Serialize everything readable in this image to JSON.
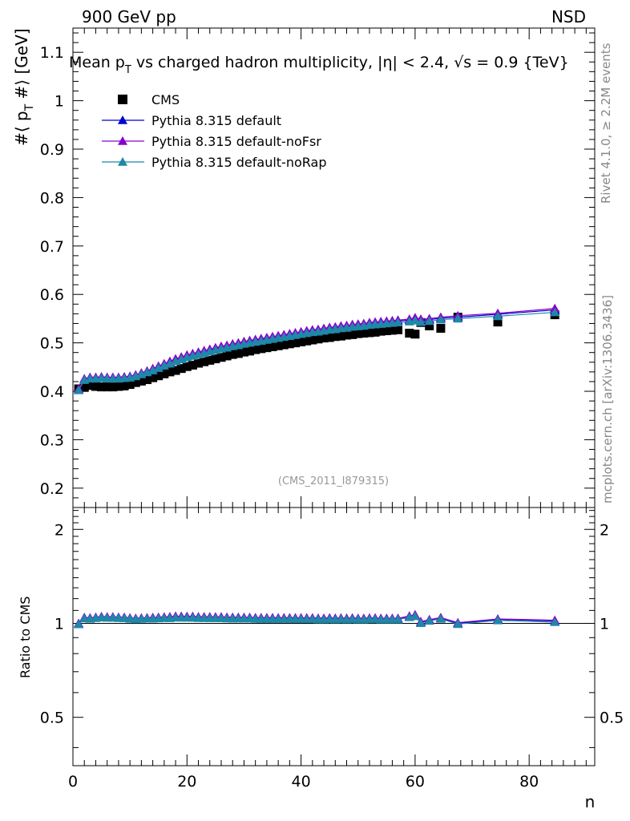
{
  "header": {
    "left": "900 GeV pp",
    "right": "NSD",
    "side_top": "Rivet 4.1.0, ≥ 2.2M events",
    "side_bottom": "mcplots.cern.ch [arXiv:1306.3436]",
    "analysis": "(CMS_2011_I879315)"
  },
  "chart_data": {
    "type": "scatter",
    "title": "Mean p_T vs charged hadron multiplicity, |η| < 2.4, √s = 0.9 {TeV}",
    "title_parts": {
      "a": "Mean p",
      "a_sub": "T",
      "b": " vs charged hadron multiplicity, ",
      "c": "η| < 2.4, ",
      "d": "s = 0.9 {TeV}"
    },
    "xlabel": "n",
    "ylabel": "#⟨ p_T #⟩ [GeV]",
    "ylabel_parts": {
      "a": "#⟨ p",
      "sub": "T",
      "b": " #⟩ [GeV]"
    },
    "ratio_ylabel": "Ratio to CMS",
    "xlim": [
      0,
      91.5
    ],
    "ylim": [
      0.16,
      1.15
    ],
    "ratio_ylim": [
      0.35,
      2.35
    ],
    "x_ticks": [
      0,
      20,
      40,
      60,
      80
    ],
    "x_tick_labels": [
      "0",
      "20",
      "40",
      "60",
      "80"
    ],
    "y_ticks": [
      0.2,
      0.3,
      0.4,
      0.5,
      0.6,
      0.7,
      0.8,
      0.9,
      1.0,
      1.1
    ],
    "y_tick_labels": [
      "0.2",
      "0.3",
      "0.4",
      "0.5",
      "0.6",
      "0.7",
      "0.8",
      "0.9",
      "1",
      "1.1"
    ],
    "ratio_ticks": [
      0.5,
      1,
      2
    ],
    "ratio_tick_labels": [
      "0.5",
      "1",
      "2"
    ],
    "legend_position": "top-left",
    "x": [
      1,
      2,
      3,
      4,
      5,
      6,
      7,
      8,
      9,
      10,
      11,
      12,
      13,
      14,
      15,
      16,
      17,
      18,
      19,
      20,
      21,
      22,
      23,
      24,
      25,
      26,
      27,
      28,
      29,
      30,
      31,
      32,
      33,
      34,
      35,
      36,
      37,
      38,
      39,
      40,
      41,
      42,
      43,
      44,
      45,
      46,
      47,
      48,
      49,
      50,
      51,
      52,
      53,
      54,
      55,
      56,
      57,
      59,
      60,
      61,
      62.5,
      64.5,
      67.5,
      74.5,
      84.5
    ],
    "series": [
      {
        "name": "CMS",
        "marker": "square",
        "color": "#000000",
        "values": [
          0.405,
          0.408,
          0.412,
          0.41,
          0.409,
          0.409,
          0.409,
          0.41,
          0.411,
          0.414,
          0.418,
          0.421,
          0.424,
          0.428,
          0.432,
          0.436,
          0.44,
          0.443,
          0.447,
          0.451,
          0.454,
          0.458,
          0.461,
          0.464,
          0.467,
          0.47,
          0.473,
          0.476,
          0.478,
          0.481,
          0.483,
          0.486,
          0.488,
          0.49,
          0.492,
          0.494,
          0.496,
          0.498,
          0.5,
          0.502,
          0.504,
          0.506,
          0.508,
          0.51,
          0.511,
          0.513,
          0.514,
          0.516,
          0.517,
          0.519,
          0.52,
          0.521,
          0.522,
          0.524,
          0.525,
          0.526,
          0.527,
          0.52,
          0.518,
          0.542,
          0.535,
          0.53,
          0.553,
          0.543,
          0.558
        ]
      },
      {
        "name": "Pythia 8.315 default",
        "marker": "triangle",
        "color": "#0000cc",
        "values": [
          0.404,
          0.425,
          0.428,
          0.428,
          0.429,
          0.428,
          0.428,
          0.428,
          0.429,
          0.43,
          0.433,
          0.437,
          0.441,
          0.445,
          0.45,
          0.455,
          0.46,
          0.465,
          0.469,
          0.473,
          0.476,
          0.479,
          0.482,
          0.485,
          0.488,
          0.491,
          0.493,
          0.496,
          0.498,
          0.501,
          0.503,
          0.505,
          0.507,
          0.509,
          0.511,
          0.513,
          0.515,
          0.517,
          0.519,
          0.521,
          0.523,
          0.525,
          0.526,
          0.528,
          0.53,
          0.531,
          0.533,
          0.534,
          0.536,
          0.537,
          0.538,
          0.54,
          0.541,
          0.542,
          0.543,
          0.544,
          0.545,
          0.547,
          0.549,
          0.546,
          0.548,
          0.551,
          0.553,
          0.559,
          0.568
        ]
      },
      {
        "name": "Pythia 8.315 default-noFsr",
        "marker": "triangle",
        "color": "#8800cc",
        "values": [
          0.405,
          0.426,
          0.429,
          0.429,
          0.43,
          0.429,
          0.429,
          0.429,
          0.43,
          0.431,
          0.434,
          0.438,
          0.442,
          0.447,
          0.452,
          0.457,
          0.462,
          0.467,
          0.471,
          0.475,
          0.478,
          0.481,
          0.484,
          0.487,
          0.49,
          0.493,
          0.495,
          0.498,
          0.5,
          0.503,
          0.505,
          0.507,
          0.509,
          0.511,
          0.513,
          0.515,
          0.517,
          0.519,
          0.521,
          0.523,
          0.525,
          0.527,
          0.528,
          0.53,
          0.532,
          0.533,
          0.535,
          0.536,
          0.538,
          0.539,
          0.54,
          0.542,
          0.543,
          0.544,
          0.545,
          0.546,
          0.547,
          0.549,
          0.552,
          0.549,
          0.55,
          0.553,
          0.556,
          0.561,
          0.571
        ]
      },
      {
        "name": "Pythia 8.315 default-noRap",
        "marker": "triangle",
        "color": "#1e88a8",
        "values": [
          0.402,
          0.423,
          0.426,
          0.426,
          0.427,
          0.426,
          0.426,
          0.426,
          0.427,
          0.428,
          0.431,
          0.435,
          0.439,
          0.443,
          0.448,
          0.453,
          0.457,
          0.462,
          0.466,
          0.47,
          0.473,
          0.476,
          0.479,
          0.482,
          0.485,
          0.488,
          0.49,
          0.493,
          0.495,
          0.498,
          0.5,
          0.502,
          0.504,
          0.506,
          0.508,
          0.51,
          0.512,
          0.514,
          0.516,
          0.518,
          0.52,
          0.522,
          0.523,
          0.525,
          0.527,
          0.528,
          0.53,
          0.531,
          0.533,
          0.534,
          0.535,
          0.537,
          0.538,
          0.539,
          0.54,
          0.541,
          0.542,
          0.544,
          0.546,
          0.543,
          0.545,
          0.548,
          0.55,
          0.555,
          0.563
        ]
      }
    ]
  }
}
